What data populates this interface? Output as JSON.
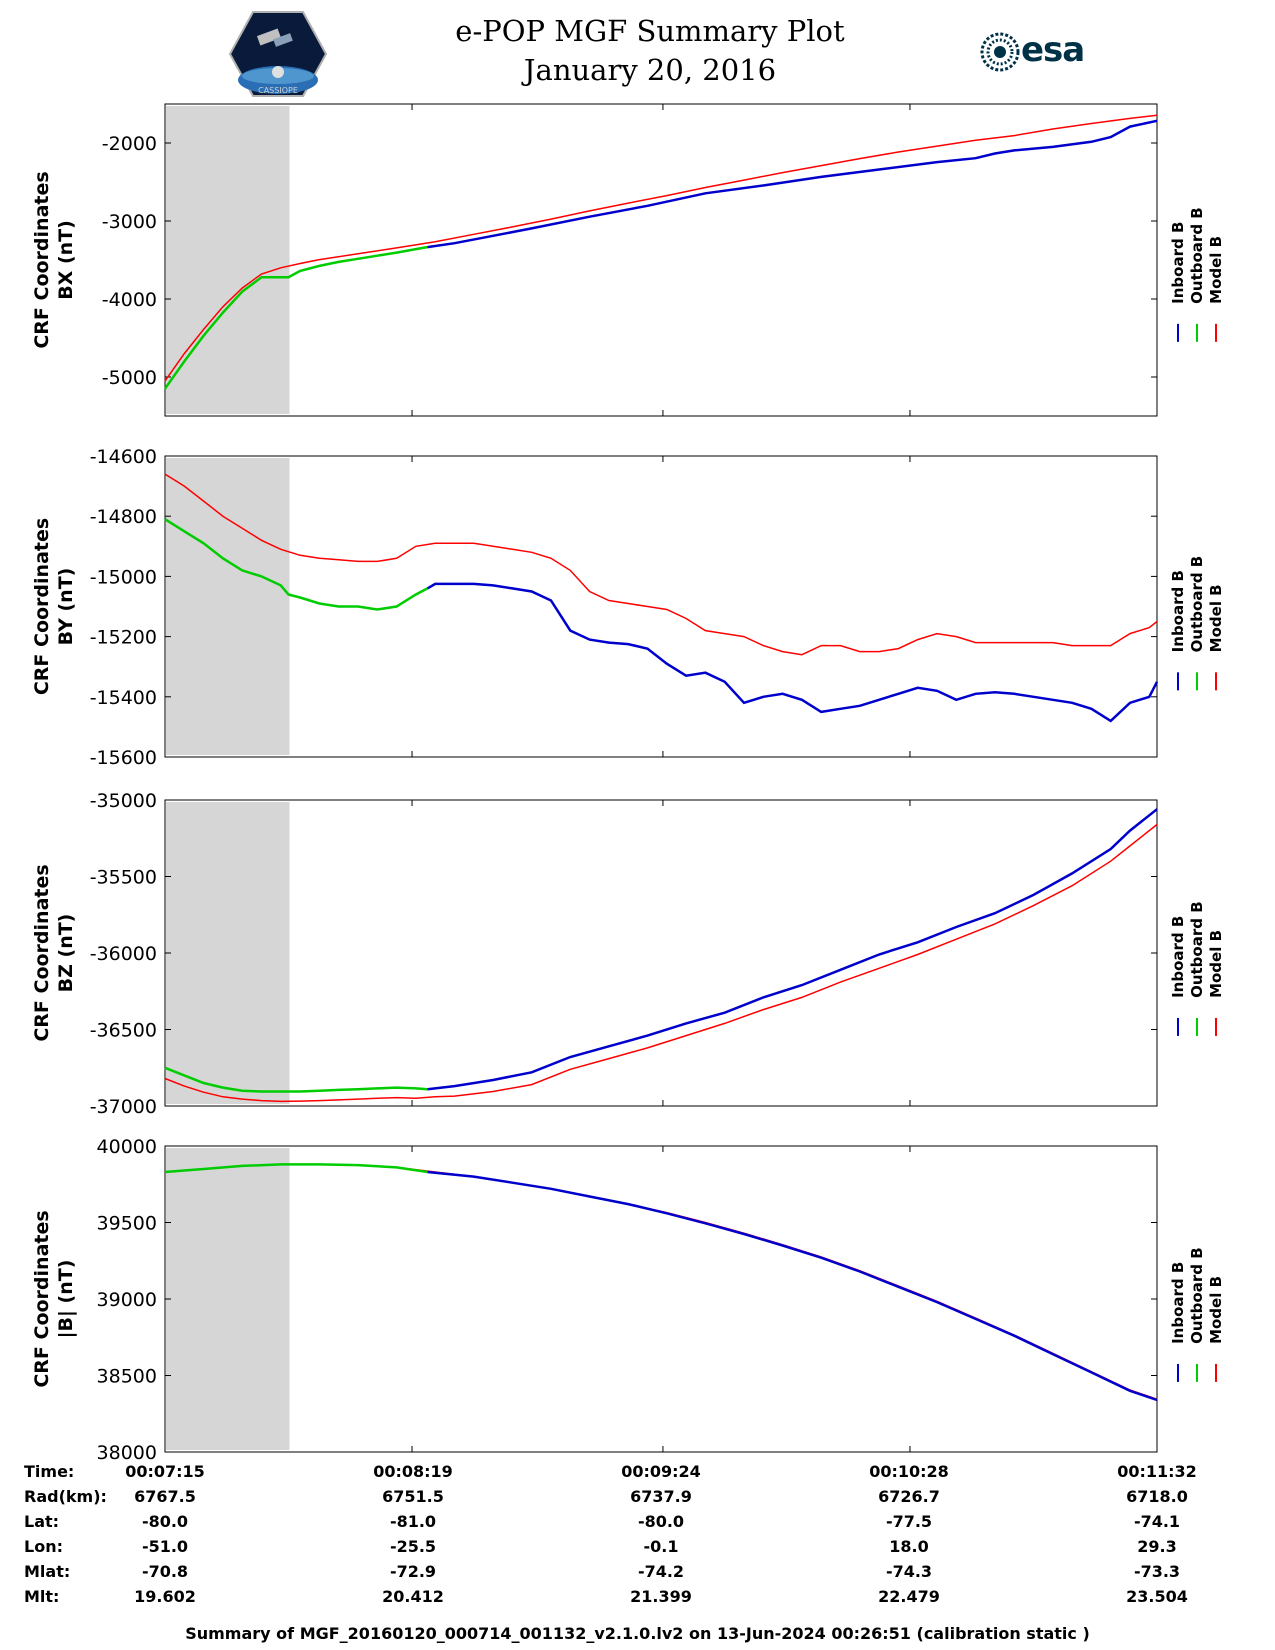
{
  "header": {
    "title_line1": "e-POP MGF Summary Plot",
    "title_line2": "January 20, 2016",
    "logo_left_text": "CASSIOPE",
    "logo_right_text": "esa"
  },
  "legend": [
    "Inboard B",
    "Outboard B",
    "Model B"
  ],
  "colors": {
    "inboard": "#0000cc",
    "outboard": "#00cc00",
    "model": "#ff0000",
    "shade": "#d6d6d6"
  },
  "chart_data": [
    {
      "type": "line",
      "ylabel": [
        "CRF Coordinates",
        "BX (nT)"
      ],
      "ylim": [
        -5500,
        -1500
      ],
      "yticks": [
        -5000,
        -4000,
        -3000,
        -2000
      ],
      "xlim": [
        0,
        257
      ],
      "x_tick_positions": [
        0,
        64,
        129,
        193,
        257
      ],
      "shaded_x_range": [
        0,
        32
      ],
      "series": [
        {
          "name": "Inboard B",
          "x": [
            68,
            75,
            85,
            95,
            110,
            125,
            140,
            155,
            170,
            185,
            200,
            210,
            215,
            220,
            230,
            240,
            245,
            250,
            257
          ],
          "values": [
            -3335,
            -3285,
            -3190,
            -3095,
            -2945,
            -2805,
            -2645,
            -2545,
            -2435,
            -2340,
            -2245,
            -2195,
            -2135,
            -2095,
            -2050,
            -1985,
            -1925,
            -1790,
            -1715
          ]
        },
        {
          "name": "Outboard B",
          "x": [
            0,
            5,
            10,
            15,
            20,
            25,
            30,
            32,
            35,
            40,
            45,
            50,
            55,
            60,
            65,
            68
          ],
          "values": [
            -5150,
            -4800,
            -4470,
            -4175,
            -3905,
            -3720,
            -3720,
            -3720,
            -3640,
            -3575,
            -3525,
            -3485,
            -3445,
            -3405,
            -3360,
            -3335
          ]
        },
        {
          "name": "Model B",
          "x": [
            0,
            5,
            10,
            15,
            20,
            25,
            30,
            35,
            40,
            50,
            60,
            70,
            80,
            90,
            100,
            110,
            120,
            130,
            140,
            150,
            160,
            170,
            180,
            190,
            200,
            210,
            220,
            230,
            240,
            250,
            257
          ],
          "values": [
            -5050,
            -4700,
            -4390,
            -4100,
            -3860,
            -3680,
            -3600,
            -3545,
            -3495,
            -3420,
            -3345,
            -3265,
            -3170,
            -3075,
            -2975,
            -2870,
            -2770,
            -2675,
            -2570,
            -2475,
            -2380,
            -2290,
            -2200,
            -2115,
            -2040,
            -1965,
            -1905,
            -1820,
            -1750,
            -1685,
            -1645
          ]
        }
      ]
    },
    {
      "type": "line",
      "ylabel": [
        "CRF Coordinates",
        "BY (nT)"
      ],
      "ylim": [
        -15600,
        -14600
      ],
      "yticks": [
        -15600,
        -15400,
        -15200,
        -15000,
        -14800,
        -14600
      ],
      "xlim": [
        0,
        257
      ],
      "x_tick_positions": [
        0,
        64,
        129,
        193,
        257
      ],
      "shaded_x_range": [
        0,
        32
      ],
      "series": [
        {
          "name": "Inboard B",
          "x": [
            68,
            70,
            75,
            80,
            85,
            90,
            95,
            100,
            105,
            110,
            115,
            120,
            125,
            130,
            135,
            140,
            145,
            150,
            155,
            160,
            165,
            170,
            175,
            180,
            185,
            190,
            195,
            200,
            205,
            210,
            215,
            220,
            225,
            230,
            235,
            240,
            245,
            250,
            255,
            257
          ],
          "values": [
            -15040,
            -15025,
            -15025,
            -15025,
            -15030,
            -15040,
            -15050,
            -15080,
            -15180,
            -15210,
            -15220,
            -15225,
            -15240,
            -15290,
            -15330,
            -15320,
            -15350,
            -15420,
            -15400,
            -15390,
            -15410,
            -15450,
            -15440,
            -15430,
            -15410,
            -15390,
            -15370,
            -15380,
            -15410,
            -15390,
            -15385,
            -15390,
            -15400,
            -15410,
            -15420,
            -15440,
            -15480,
            -15420,
            -15400,
            -15350
          ]
        },
        {
          "name": "Outboard B",
          "x": [
            0,
            5,
            10,
            15,
            20,
            25,
            30,
            32,
            35,
            40,
            45,
            50,
            55,
            60,
            65,
            68
          ],
          "values": [
            -14810,
            -14850,
            -14890,
            -14940,
            -14980,
            -15000,
            -15030,
            -15060,
            -15070,
            -15090,
            -15100,
            -15100,
            -15110,
            -15100,
            -15060,
            -15040
          ]
        },
        {
          "name": "Model B",
          "x": [
            0,
            5,
            10,
            15,
            20,
            25,
            30,
            35,
            40,
            45,
            50,
            55,
            60,
            65,
            70,
            75,
            80,
            85,
            90,
            95,
            100,
            105,
            110,
            115,
            120,
            125,
            130,
            135,
            140,
            145,
            150,
            155,
            160,
            165,
            170,
            175,
            180,
            185,
            190,
            195,
            200,
            205,
            210,
            215,
            220,
            225,
            230,
            235,
            240,
            245,
            250,
            255,
            257
          ],
          "values": [
            -14660,
            -14700,
            -14750,
            -14800,
            -14840,
            -14880,
            -14910,
            -14930,
            -14940,
            -14945,
            -14950,
            -14950,
            -14940,
            -14900,
            -14890,
            -14890,
            -14890,
            -14900,
            -14910,
            -14920,
            -14940,
            -14980,
            -15050,
            -15080,
            -15090,
            -15100,
            -15110,
            -15140,
            -15180,
            -15190,
            -15200,
            -15230,
            -15250,
            -15260,
            -15230,
            -15230,
            -15250,
            -15250,
            -15240,
            -15210,
            -15190,
            -15200,
            -15220,
            -15220,
            -15220,
            -15220,
            -15220,
            -15230,
            -15230,
            -15230,
            -15190,
            -15170,
            -15150
          ]
        }
      ]
    },
    {
      "type": "line",
      "ylabel": [
        "CRF Coordinates",
        "BZ (nT)"
      ],
      "ylim": [
        -37000,
        -35000
      ],
      "yticks": [
        -37000,
        -36500,
        -36000,
        -35500,
        -35000
      ],
      "xlim": [
        0,
        257
      ],
      "x_tick_positions": [
        0,
        64,
        129,
        193,
        257
      ],
      "shaded_x_range": [
        0,
        32
      ],
      "series": [
        {
          "name": "Inboard B",
          "x": [
            68,
            75,
            85,
            95,
            105,
            115,
            125,
            135,
            145,
            155,
            165,
            175,
            185,
            195,
            205,
            215,
            225,
            235,
            245,
            250,
            257
          ],
          "values": [
            -36890,
            -36870,
            -36830,
            -36780,
            -36680,
            -36610,
            -36540,
            -36460,
            -36390,
            -36290,
            -36210,
            -36110,
            -36010,
            -35930,
            -35830,
            -35740,
            -35620,
            -35480,
            -35320,
            -35200,
            -35060
          ]
        },
        {
          "name": "Outboard B",
          "x": [
            0,
            5,
            10,
            15,
            20,
            25,
            30,
            32,
            35,
            40,
            45,
            50,
            55,
            60,
            65,
            68
          ],
          "values": [
            -36750,
            -36800,
            -36850,
            -36880,
            -36900,
            -36905,
            -36905,
            -36905,
            -36905,
            -36900,
            -36895,
            -36890,
            -36885,
            -36880,
            -36885,
            -36890
          ]
        },
        {
          "name": "Model B",
          "x": [
            0,
            5,
            10,
            15,
            20,
            25,
            30,
            35,
            40,
            45,
            50,
            55,
            60,
            65,
            70,
            75,
            85,
            95,
            105,
            115,
            125,
            135,
            145,
            155,
            165,
            175,
            185,
            195,
            205,
            215,
            225,
            235,
            245,
            250,
            257
          ],
          "values": [
            -36820,
            -36870,
            -36910,
            -36940,
            -36955,
            -36965,
            -36970,
            -36968,
            -36965,
            -36960,
            -36955,
            -36950,
            -36945,
            -36950,
            -36940,
            -36935,
            -36905,
            -36860,
            -36760,
            -36690,
            -36620,
            -36540,
            -36460,
            -36370,
            -36290,
            -36190,
            -36100,
            -36010,
            -35910,
            -35810,
            -35690,
            -35560,
            -35400,
            -35300,
            -35160
          ]
        }
      ]
    },
    {
      "type": "line",
      "ylabel": [
        "CRF Coordinates",
        "|B| (nT)"
      ],
      "ylim": [
        38000,
        40000
      ],
      "yticks": [
        38000,
        38500,
        39000,
        39500,
        40000
      ],
      "xlim": [
        0,
        257
      ],
      "x_tick_positions": [
        0,
        64,
        129,
        193,
        257
      ],
      "shaded_x_range": [
        0,
        32
      ],
      "series": [
        {
          "name": "Inboard B",
          "x": [
            68,
            80,
            90,
            100,
            110,
            120,
            130,
            140,
            150,
            160,
            170,
            180,
            190,
            200,
            210,
            220,
            230,
            240,
            250,
            257
          ],
          "values": [
            39830,
            39800,
            39760,
            39720,
            39670,
            39620,
            39560,
            39495,
            39425,
            39350,
            39270,
            39180,
            39080,
            38980,
            38870,
            38760,
            38640,
            38520,
            38400,
            38340
          ]
        },
        {
          "name": "Outboard B",
          "x": [
            0,
            10,
            20,
            30,
            32,
            40,
            50,
            60,
            68
          ],
          "values": [
            39830,
            39850,
            39870,
            39880,
            39880,
            39880,
            39875,
            39860,
            39830
          ]
        },
        {
          "name": "Model B",
          "x": [
            0,
            10,
            20,
            30,
            40,
            50,
            60,
            70,
            80,
            90,
            100,
            110,
            120,
            130,
            140,
            150,
            160,
            170,
            180,
            190,
            200,
            210,
            220,
            230,
            240,
            250,
            257
          ],
          "values": [
            39830,
            39850,
            39870,
            39880,
            39880,
            39875,
            39860,
            39830,
            39800,
            39760,
            39720,
            39670,
            39620,
            39565,
            39500,
            39430,
            39355,
            39275,
            39185,
            39085,
            38985,
            38875,
            38765,
            38645,
            38525,
            38405,
            38345
          ]
        }
      ]
    }
  ],
  "footer": {
    "row_labels": [
      "Time:",
      "Rad(km):",
      "Lat:",
      "Lon:",
      "Mlat:",
      "Mlt:"
    ],
    "columns": [
      {
        "time": "00:07:15",
        "rad": "6767.5",
        "lat": "-80.0",
        "lon": "-51.0",
        "mlat": "-70.8",
        "mlt": "19.602"
      },
      {
        "time": "00:08:19",
        "rad": "6751.5",
        "lat": "-81.0",
        "lon": "-25.5",
        "mlat": "-72.9",
        "mlt": "20.412"
      },
      {
        "time": "00:09:24",
        "rad": "6737.9",
        "lat": "-80.0",
        "lon": "-0.1",
        "mlat": "-74.2",
        "mlt": "21.399"
      },
      {
        "time": "00:10:28",
        "rad": "6726.7",
        "lat": "-77.5",
        "lon": "18.0",
        "mlat": "-74.3",
        "mlt": "22.479"
      },
      {
        "time": "00:11:32",
        "rad": "6718.0",
        "lat": "-74.1",
        "lon": "29.3",
        "mlat": "-73.3",
        "mlt": "23.504"
      }
    ],
    "caption": "Summary of MGF_20160120_000714_001132_v2.1.0.lv2 on 13-Jun-2024 00:26:51 (calibration static )"
  }
}
